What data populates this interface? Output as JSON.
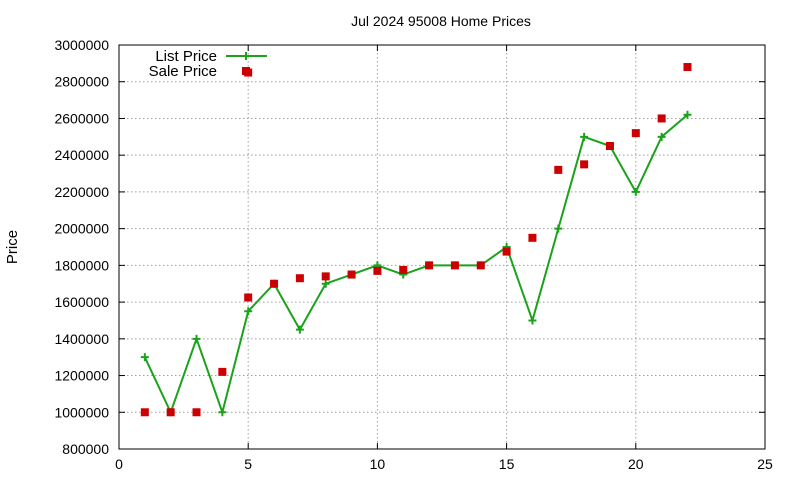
{
  "chart_data": {
    "type": "line",
    "title": "Jul 2024 95008 Home Prices",
    "xlabel": "",
    "ylabel": "Price",
    "xlim": [
      0,
      25
    ],
    "ylim": [
      800000,
      3000000
    ],
    "xticks": [
      "0",
      "5",
      "10",
      "15",
      "20",
      "25"
    ],
    "yticks": [
      "800000",
      "1000000",
      "1200000",
      "1400000",
      "1600000",
      "1800000",
      "2000000",
      "2200000",
      "2400000",
      "2600000",
      "2800000",
      "3000000"
    ],
    "grid": true,
    "legend_position": "top-left",
    "series": [
      {
        "name": "List Price",
        "style": "linespoints",
        "color": "#1aa31a",
        "marker": "plus",
        "x": [
          1,
          2,
          3,
          4,
          5,
          6,
          7,
          8,
          9,
          10,
          11,
          12,
          13,
          14,
          15,
          16,
          17,
          18,
          19,
          20,
          21,
          22
        ],
        "y": [
          1300000,
          1000000,
          1400000,
          1000000,
          1550000,
          1700000,
          1450000,
          1700000,
          1750000,
          1800000,
          1750000,
          1800000,
          1800000,
          1800000,
          1900000,
          1500000,
          2000000,
          2500000,
          2450000,
          2200000,
          2500000,
          2620000
        ]
      },
      {
        "name": "Sale Price",
        "style": "points",
        "color": "#cc0000",
        "marker": "square",
        "x": [
          1,
          2,
          3,
          4,
          5,
          5,
          6,
          7,
          8,
          9,
          10,
          11,
          12,
          13,
          14,
          15,
          16,
          17,
          18,
          19,
          20,
          21,
          22
        ],
        "y": [
          1000000,
          1000000,
          1000000,
          1220000,
          2850000,
          1625000,
          1700000,
          1730000,
          1740000,
          1750000,
          1770000,
          1775000,
          1800000,
          1800000,
          1800000,
          1875000,
          1950000,
          2320000,
          2350000,
          2450000,
          2520000,
          2600000,
          2880000
        ]
      }
    ]
  }
}
